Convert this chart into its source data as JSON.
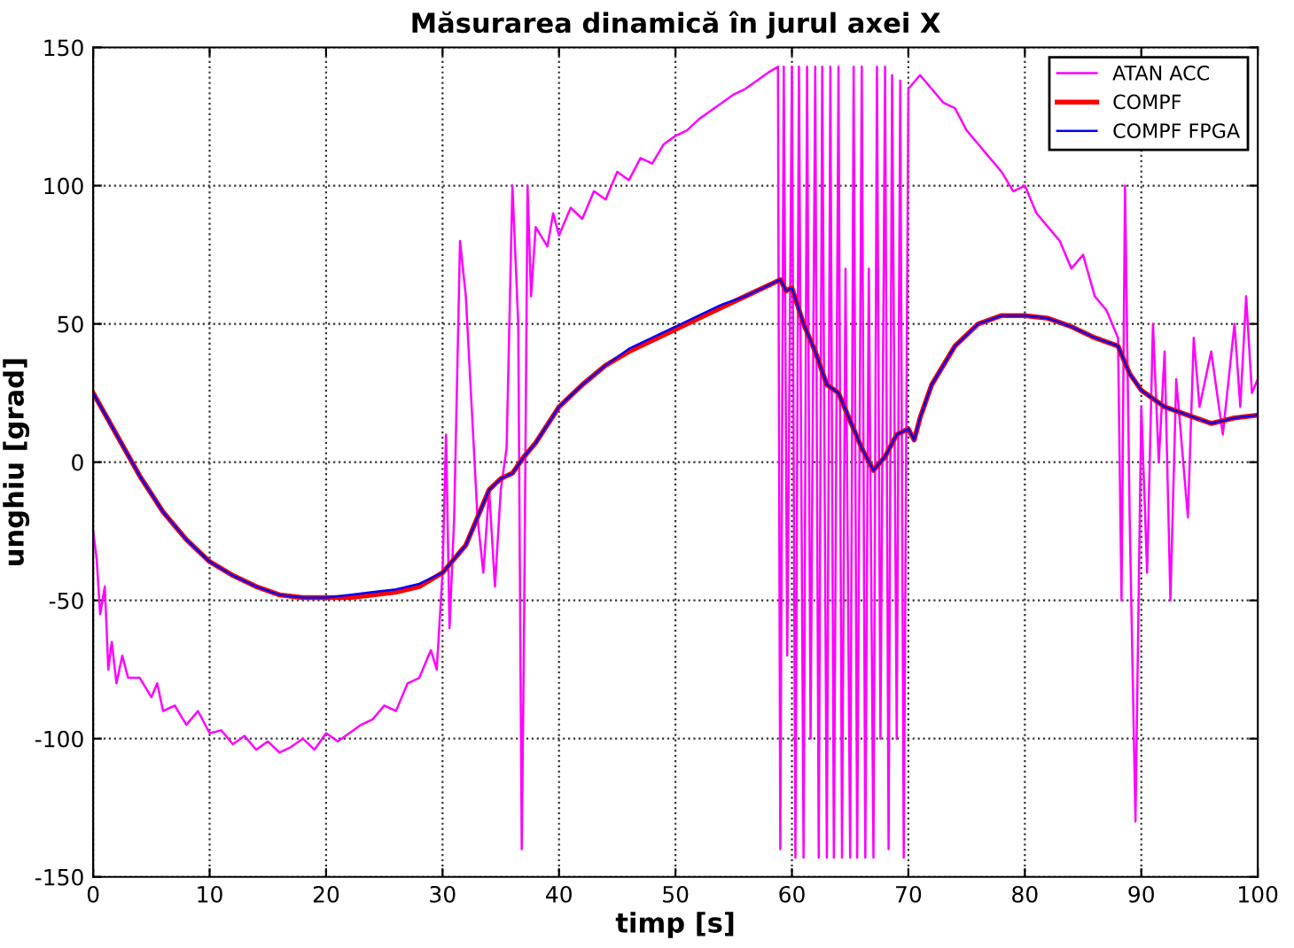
{
  "chart_data": {
    "type": "line",
    "title": "Măsurarea dinamică în jurul axei X",
    "xlabel": "timp [s]",
    "ylabel": "unghiu [grad]",
    "xlim": [
      0,
      100
    ],
    "xticks": [
      0,
      10,
      20,
      30,
      40,
      50,
      60,
      70,
      80,
      90,
      100
    ],
    "ylim": [
      -150,
      150
    ],
    "yticks": [
      -150,
      -100,
      -50,
      0,
      50,
      100,
      150
    ],
    "grid": true,
    "legend": "top right",
    "line_style": "solid",
    "marker": "none",
    "series": [
      {
        "name": "ATAN ACC",
        "color": "#ff00ff",
        "x": [
          0,
          0.3,
          0.6,
          1,
          1.3,
          1.6,
          2,
          2.5,
          3,
          4,
          5,
          5.5,
          6,
          7,
          8,
          9,
          10,
          11,
          12,
          13,
          14,
          15,
          16,
          17,
          18,
          19,
          20,
          21,
          22,
          23,
          24,
          25,
          26,
          27,
          28,
          29,
          29.5,
          30,
          30.3,
          30.6,
          31,
          31.5,
          32,
          32.5,
          33,
          33.5,
          34,
          34.5,
          35,
          35.5,
          36,
          36.5,
          36.8,
          37,
          37.3,
          37.6,
          38,
          39,
          39.5,
          40,
          41,
          42,
          43,
          44,
          45,
          46,
          47,
          48,
          49,
          50,
          51,
          52,
          53,
          54,
          55,
          56,
          57,
          58,
          58.8,
          59,
          59.3,
          59.6,
          60,
          60.3,
          60.6,
          61,
          61.3,
          61.6,
          62,
          62.3,
          62.6,
          63,
          63.3,
          63.6,
          64,
          64.3,
          64.6,
          65,
          65.3,
          65.6,
          66,
          66.3,
          66.6,
          67,
          67.3,
          67.6,
          68,
          68.3,
          68.6,
          69,
          69.3,
          69.6,
          70,
          71,
          72,
          73,
          74,
          75,
          76,
          77,
          78,
          79,
          80,
          81,
          82,
          83,
          84,
          85,
          86,
          87,
          88,
          88.3,
          88.6,
          89,
          89.5,
          90,
          90.5,
          91,
          91.5,
          92,
          92.5,
          93,
          94,
          94.5,
          95,
          96,
          97,
          98,
          98.5,
          99,
          99.5,
          100
        ],
        "values": [
          -25,
          -35,
          -55,
          -45,
          -75,
          -65,
          -80,
          -70,
          -78,
          -78,
          -85,
          -80,
          -90,
          -88,
          -95,
          -90,
          -98,
          -97,
          -102,
          -99,
          -104,
          -101,
          -105,
          -103,
          -100,
          -104,
          -98,
          -101,
          -98,
          -95,
          -93,
          -88,
          -90,
          -80,
          -78,
          -68,
          -75,
          -40,
          10,
          -60,
          -20,
          80,
          60,
          20,
          -20,
          -40,
          -10,
          -45,
          -10,
          5,
          100,
          50,
          -140,
          -60,
          100,
          60,
          85,
          78,
          90,
          82,
          92,
          88,
          98,
          95,
          105,
          102,
          110,
          108,
          115,
          118,
          120,
          124,
          127,
          130,
          133,
          135,
          138,
          141,
          143,
          -140,
          143,
          -70,
          143,
          -143,
          143,
          -143,
          143,
          -100,
          143,
          -143,
          143,
          -143,
          143,
          -143,
          143,
          -143,
          70,
          -143,
          143,
          -143,
          143,
          -143,
          70,
          -143,
          143,
          -100,
          143,
          -140,
          140,
          -100,
          138,
          -143,
          135,
          140,
          135,
          130,
          128,
          120,
          115,
          110,
          105,
          98,
          100,
          90,
          85,
          80,
          70,
          75,
          60,
          55,
          45,
          -50,
          100,
          -20,
          -130,
          20,
          -40,
          50,
          0,
          40,
          -50,
          30,
          -20,
          45,
          20,
          40,
          10,
          50,
          20,
          60,
          25,
          30
        ]
      },
      {
        "name": "COMPF",
        "color": "#ff0000",
        "x": [
          0,
          2,
          4,
          6,
          8,
          10,
          12,
          14,
          16,
          18,
          20,
          22,
          24,
          26,
          28,
          30,
          32,
          33,
          34,
          35,
          36,
          37,
          38,
          40,
          42,
          44,
          46,
          48,
          50,
          52,
          54,
          56,
          58,
          59,
          59.5,
          60,
          61,
          62,
          63,
          64,
          65,
          66,
          67,
          68,
          69,
          70,
          70.5,
          71,
          72,
          74,
          76,
          78,
          80,
          82,
          84,
          86,
          88,
          89,
          90,
          92,
          94,
          96,
          98,
          100
        ],
        "values": [
          25,
          10,
          -5,
          -18,
          -28,
          -36,
          -41,
          -45,
          -48,
          -49,
          -49,
          -49,
          -48,
          -47,
          -45,
          -40,
          -30,
          -20,
          -10,
          -6,
          -4,
          2,
          7,
          20,
          28,
          35,
          40,
          44,
          48,
          52,
          56,
          60,
          64,
          66,
          62,
          63,
          50,
          40,
          28,
          25,
          15,
          5,
          -3,
          2,
          10,
          12,
          8,
          16,
          28,
          42,
          50,
          53,
          53,
          52,
          49,
          45,
          42,
          32,
          26,
          20,
          17,
          14,
          16,
          17
        ]
      },
      {
        "name": "COMPF FPGA",
        "color": "#0000ff",
        "x": [
          0,
          2,
          4,
          6,
          8,
          10,
          12,
          14,
          16,
          18,
          20,
          22,
          24,
          26,
          28,
          30,
          32,
          33,
          34,
          35,
          36,
          37,
          38,
          40,
          42,
          44,
          46,
          48,
          50,
          52,
          54,
          56,
          58,
          59,
          59.5,
          60,
          61,
          62,
          63,
          64,
          65,
          66,
          67,
          68,
          69,
          70,
          70.5,
          71,
          72,
          74,
          76,
          78,
          80,
          82,
          84,
          86,
          88,
          89,
          90,
          92,
          94,
          96,
          98,
          100
        ],
        "values": [
          25,
          10,
          -5,
          -18,
          -28,
          -36,
          -41,
          -45,
          -48,
          -49,
          -49,
          -48,
          -47,
          -46,
          -44,
          -40,
          -30,
          -20,
          -10,
          -6,
          -4,
          2,
          7,
          20,
          28,
          35,
          41,
          45,
          49,
          53,
          57,
          60,
          64,
          66,
          62,
          63,
          50,
          40,
          28,
          25,
          15,
          5,
          -3,
          2,
          10,
          12,
          8,
          16,
          28,
          42,
          50,
          53,
          53,
          52,
          49,
          45,
          42,
          32,
          26,
          20,
          17,
          14,
          16,
          17
        ]
      }
    ]
  }
}
